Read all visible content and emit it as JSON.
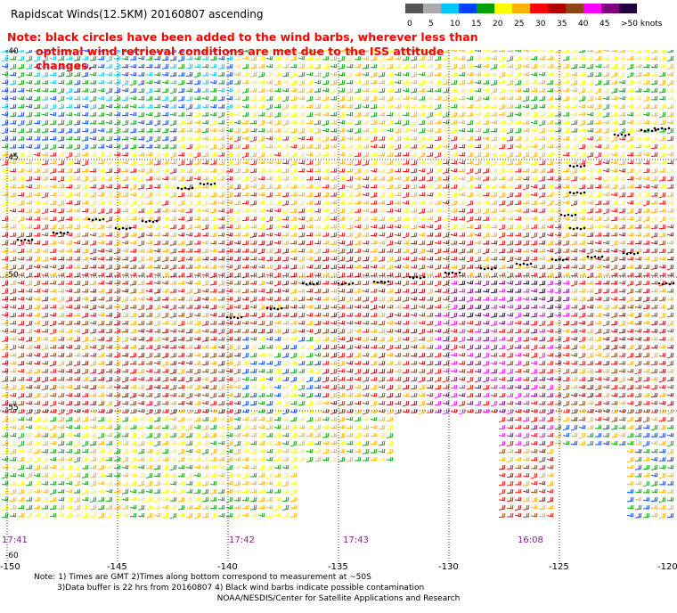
{
  "title": "Rapidscat Winds(12.5KM) 20160807 ascending",
  "note_lines": [
    "Note: black circles have been added to the wind barbs, wherever less than",
    "optimal wind retrieval conditions are met due to the ISS attitude changes."
  ],
  "legend": {
    "ticks": [
      "0",
      "5",
      "10",
      "15",
      "20",
      "25",
      "30",
      "35",
      "40",
      "45",
      ">50 knots"
    ],
    "colors": [
      "#555555",
      "#aaaaaa",
      "#00c8ff",
      "#0040ff",
      "#00a000",
      "#ffff00",
      "#ffb000",
      "#ff0000",
      "#b00000",
      "#8b4513",
      "#ff00ff",
      "#800080",
      "#200040"
    ]
  },
  "lat_labels": [
    "-40",
    "-45",
    "-50",
    "-55",
    "-60"
  ],
  "lon_labels": [
    "-150",
    "-145",
    "-140",
    "-135",
    "-130",
    "-125",
    "-120"
  ],
  "time_labels": [
    "17:41",
    "17:42",
    "17:43",
    "16:08"
  ],
  "footnote_lines": [
    "Note: 1) Times are GMT 2)Times along bottom correspond to measurement at ~50S",
    "3)Data buffer is 22 hrs from 20160807 4) Black wind barbs indicate possible contamination"
  ],
  "credit": "NOAA/NESDIS/Center for Satellite Applications and Research"
}
